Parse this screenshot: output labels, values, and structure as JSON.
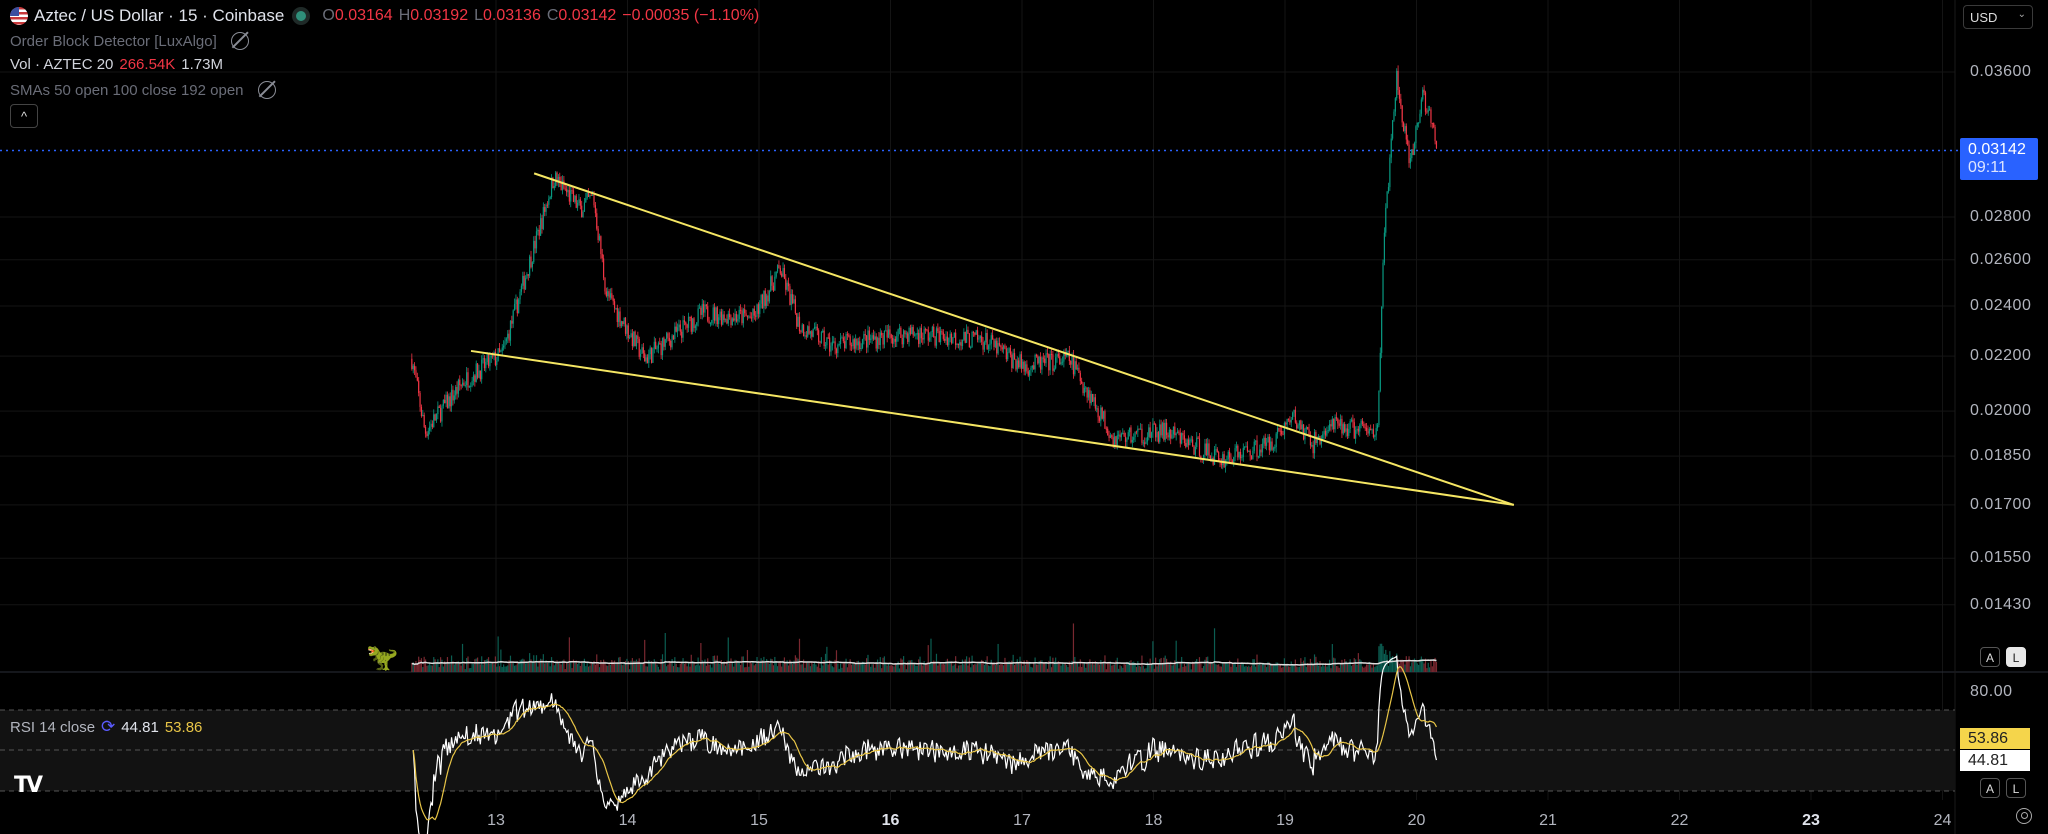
{
  "header": {
    "symbol_title": "Aztec / US Dollar · 15 · Coinbase",
    "ohlc": {
      "o_label": "O",
      "o": "0.03164",
      "h_label": "H",
      "h": "0.03192",
      "l_label": "L",
      "l": "0.03136",
      "c_label": "C",
      "c": "0.03142",
      "change": "−0.00035 (−1.10%)"
    }
  },
  "indicators": {
    "order_block": "Order Block Detector [LuxAlgo]",
    "vol_label": "Vol · AZTEC 20",
    "vol_value": "266.54K",
    "vol_ma": "1.73M",
    "smas": "SMAs 50 open 100 close 192 open",
    "rsi_label": "RSI 14 close",
    "rsi_value": "44.81",
    "rsi_ma": "53.86"
  },
  "currency_select": "USD",
  "price_axis": [
    "0.03600",
    "0.02800",
    "0.02600",
    "0.02400",
    "0.02200",
    "0.02000",
    "0.01850",
    "0.01700",
    "0.01550",
    "0.01430"
  ],
  "current_price": {
    "price": "0.03142",
    "countdown": "09:11"
  },
  "rsi_axis": {
    "top": "80.00",
    "rsi_tag": "44.81",
    "ma_tag": "53.86"
  },
  "time_axis": [
    {
      "label": "13",
      "bold": false
    },
    {
      "label": "14",
      "bold": false
    },
    {
      "label": "15",
      "bold": false
    },
    {
      "label": "16",
      "bold": true
    },
    {
      "label": "17",
      "bold": false
    },
    {
      "label": "18",
      "bold": false
    },
    {
      "label": "19",
      "bold": false
    },
    {
      "label": "20",
      "bold": false
    },
    {
      "label": "21",
      "bold": false
    },
    {
      "label": "22",
      "bold": false
    },
    {
      "label": "23",
      "bold": true
    },
    {
      "label": "24",
      "bold": false
    }
  ],
  "scale_buttons": {
    "auto": "A",
    "log": "L"
  },
  "colors": {
    "up": "#089981",
    "down": "#f23645",
    "trendline": "#f5e663",
    "price_line": "#2962ff",
    "rsi": "#ffffff",
    "rsi_ma": "#e8c547"
  },
  "chart_data": {
    "type": "candlestick",
    "timeframe_minutes": 15,
    "price_path": [
      [
        12.36,
        0.0219
      ],
      [
        12.46,
        0.0193
      ],
      [
        12.76,
        0.0211
      ],
      [
        13.05,
        0.0221
      ],
      [
        13.3,
        0.0268
      ],
      [
        13.44,
        0.03
      ],
      [
        13.64,
        0.0284
      ],
      [
        13.74,
        0.029
      ],
      [
        13.84,
        0.0245
      ],
      [
        14.13,
        0.0219
      ],
      [
        14.57,
        0.0237
      ],
      [
        14.96,
        0.0235
      ],
      [
        15.16,
        0.0256
      ],
      [
        15.31,
        0.0232
      ],
      [
        15.55,
        0.0224
      ],
      [
        16.14,
        0.0229
      ],
      [
        16.72,
        0.0226
      ],
      [
        17.02,
        0.0216
      ],
      [
        17.36,
        0.0219
      ],
      [
        17.7,
        0.0191
      ],
      [
        18.09,
        0.0193
      ],
      [
        18.52,
        0.0184
      ],
      [
        18.88,
        0.0189
      ],
      [
        19.06,
        0.0198
      ],
      [
        19.21,
        0.0189
      ],
      [
        19.36,
        0.0195
      ],
      [
        19.7,
        0.0193
      ],
      [
        19.76,
        0.0278
      ],
      [
        19.85,
        0.0356
      ],
      [
        19.95,
        0.0304
      ],
      [
        20.05,
        0.0348
      ],
      [
        20.16,
        0.0314
      ]
    ],
    "trendlines": [
      {
        "from": [
          13.29,
          0.0302
        ],
        "to": [
          20.74,
          0.017
        ]
      },
      {
        "from": [
          12.81,
          0.0222
        ],
        "to": [
          20.74,
          0.017
        ]
      }
    ],
    "y_scale": "log",
    "ylim": [
      0.0143,
      0.036
    ],
    "xlim_days": [
      13,
      24
    ]
  }
}
